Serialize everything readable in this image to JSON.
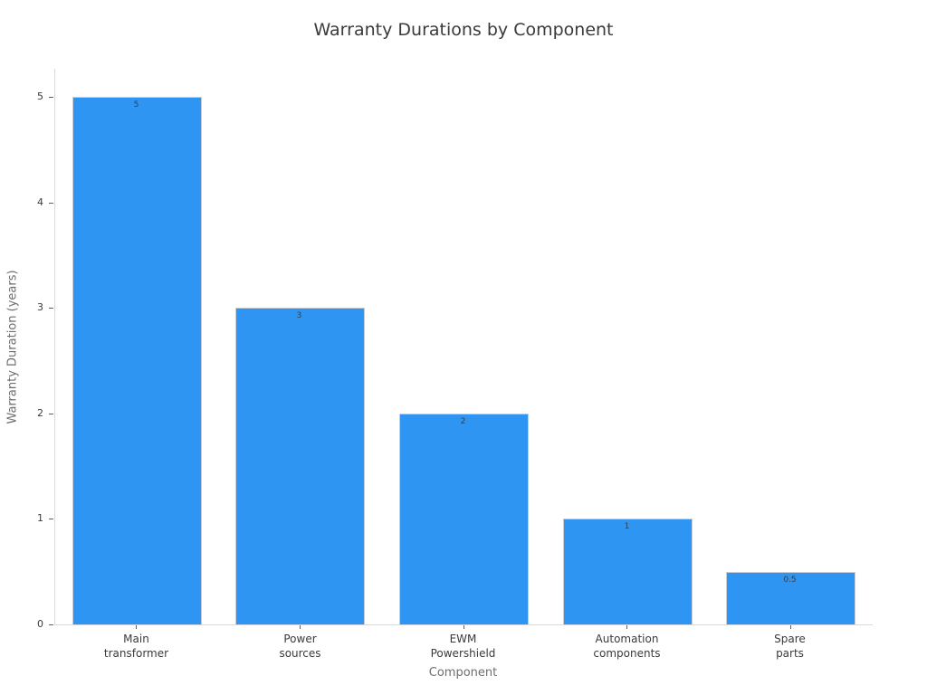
{
  "chart_data": {
    "type": "bar",
    "title": "Warranty Durations by Component",
    "xlabel": "Component",
    "ylabel": "Warranty Duration (years)",
    "categories": [
      "Main\ntransformer",
      "Power\nsources",
      "EWM\nPowershield",
      "Automation\ncomponents",
      "Spare\nparts"
    ],
    "values": [
      5,
      3,
      2,
      1,
      0.5
    ],
    "bar_value_labels": [
      "5",
      "3",
      "2",
      "1",
      "0.5"
    ],
    "yticks": [
      "0",
      "1",
      "2",
      "3",
      "4",
      "5"
    ],
    "ytick_values": [
      0,
      1,
      2,
      3,
      4,
      5
    ],
    "ylim": [
      0,
      5.27
    ],
    "grid": false,
    "legend": null,
    "colors": {
      "bar_fill": "#2e95f3",
      "bar_edge": "#c9cdd4",
      "axis_line": "#d9d9d9",
      "tick_mark": "#606060",
      "tick_label": "#3a3a3a",
      "title": "#3a3a3a",
      "axis_label": "#6e6e6e",
      "bar_value_label": "#3d3d3d",
      "background": "#ffffff"
    }
  }
}
